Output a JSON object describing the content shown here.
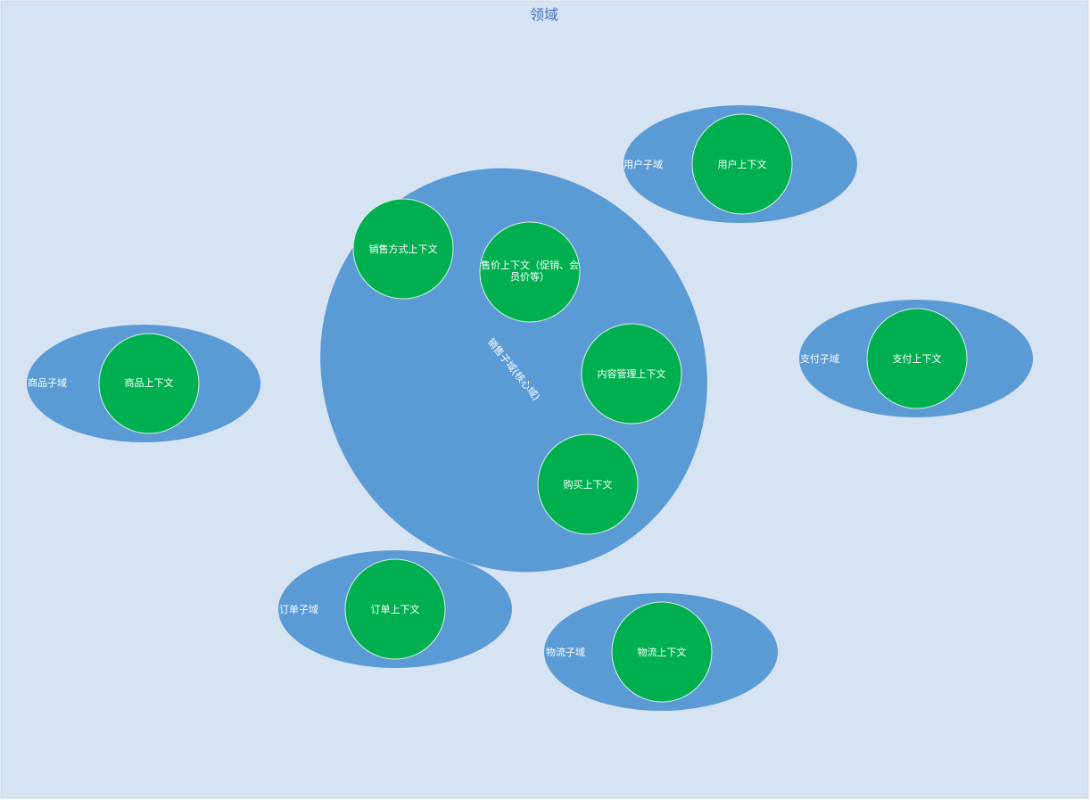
{
  "title": "领域",
  "colors": {
    "background": "#d6e3f2",
    "frame": "#c9d6e6",
    "subdomain": "#5b9bd5",
    "context": "#00b050",
    "context_stroke": "#d9f0e0",
    "title_text": "#4472c4",
    "label_text": "#ffffff"
  },
  "subdomains": {
    "core": {
      "label": "销售子域(核心域)"
    },
    "user": {
      "label": "用户子域"
    },
    "payment": {
      "label": "支付子域"
    },
    "product": {
      "label": "商品子域"
    },
    "order": {
      "label": "订单子域"
    },
    "logistics": {
      "label": "物流子域"
    }
  },
  "contexts": {
    "sales_method": {
      "label": "销售方式上下文"
    },
    "pricing": {
      "label_line1": "售价上下文（促销、会",
      "label_line2": "员价等）"
    },
    "content": {
      "label": "内容管理上下文"
    },
    "purchase": {
      "label": "购买上下文"
    },
    "user": {
      "label": "用户上下文"
    },
    "payment": {
      "label": "支付上下文"
    },
    "product": {
      "label": "商品上下文"
    },
    "order": {
      "label": "订单上下文"
    },
    "logistics": {
      "label": "物流上下文"
    }
  }
}
